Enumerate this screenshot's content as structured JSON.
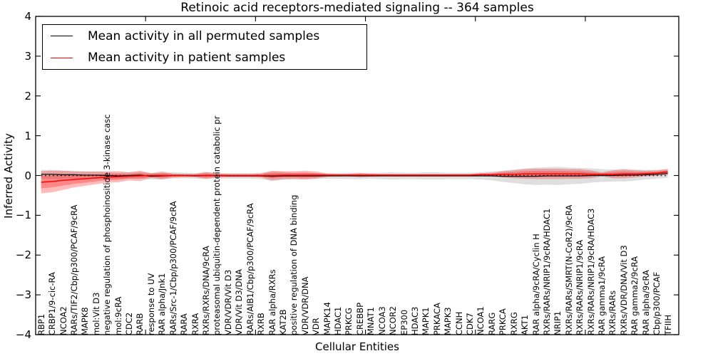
{
  "figure": {
    "title": "Retinoic acid receptors-mediated signaling -- 364 samples"
  },
  "axes": {
    "xlabel": "Cellular Entities",
    "ylabel": "Inferred Activity",
    "yticks": [
      "4",
      "3",
      "2",
      "1",
      "0",
      "−1",
      "−2",
      "−3",
      "−4"
    ],
    "ylim": [
      -4,
      4
    ]
  },
  "legend": {
    "items": [
      {
        "label": "Mean activity in all permuted samples",
        "color": "#000000"
      },
      {
        "label": "Mean activity in patient samples",
        "color": "#ff0000"
      }
    ]
  },
  "chart_data": {
    "type": "line",
    "title": "Retinoic acid receptors-mediated signaling -- 364 samples",
    "xlabel": "Cellular Entities",
    "ylabel": "Inferred Activity",
    "ylim": [
      -4,
      4
    ],
    "x_major_ticks": [
      10,
      20,
      30,
      40,
      50
    ],
    "grid": false,
    "legend_position": "upper left",
    "zero_reference_line": "dotted black at y=0",
    "categories": [
      "RBP1",
      "CRBP1/9-cic-RA",
      "NCOA2",
      "RARs/TIF2/Cbp/p300/PCAF/9cRA",
      "MAPK8",
      "mol:Vit D3",
      "negative regulation of phosphoinositide 3-kinase casc",
      "mol:9cRA",
      "CDC2",
      "RARB",
      "response to UV",
      "RAR alpha/Jnk1",
      "RARs/Src-1/Cbp/p300/PCAF/9cRA",
      "RARA",
      "RXRA",
      "RXRs/RXRs/DNA/9cRA",
      "proteasomal ubiquitin-dependent protein catabolic pr",
      "VDR/VDR/Vit D3",
      "VDR/Vit D3/DNA",
      "RARs/AIB1/Cbp/p300/PCAF/9cRA",
      "RXRB",
      "RAR alpha/RXRs",
      "KAT2B",
      "positive regulation of DNA binding",
      "VDR/VDR/DNA",
      "VDR",
      "MAPK14",
      "HDAC1",
      "PRKCG",
      "CREBBP",
      "MNAT1",
      "NCOA3",
      "NCOR2",
      "EP300",
      "HDAC3",
      "MAPK1",
      "PRKACA",
      "MAPK3",
      "CCNH",
      "CDK7",
      "NCOA1",
      "RARG",
      "PRKCA",
      "RXRG",
      "AKT1",
      "RAR alpha/9cRA/Cyclin H",
      "RXRs/RARs/NRIP1/9cRA/HDAC1",
      "NRIP1",
      "RXRs/RARs/SMRT(N-CoR2)/9cRA",
      "RXRs/RARs/NRIP1/9cRA",
      "RXRs/RARs/NRIP1/9cRA/HDAC3",
      "RAR gamma1/9cRA",
      "RXRs/RARs",
      "RXRs/VDR/DNA/Vit D3",
      "RAR gamma2/9cRA",
      "RAR alpha/9cRA",
      "Cbp/p300/PCAF",
      "TFIIH"
    ],
    "series": [
      {
        "name": "Mean activity in all permuted samples",
        "color": "#000000",
        "line_style": "solid",
        "band_color": "rgba(128,128,128,0.25)",
        "values": [
          0.03,
          0.03,
          0.02,
          0.02,
          0.01,
          0.01,
          0.0,
          -0.01,
          0.0,
          0.01,
          -0.02,
          -0.01,
          0.0,
          0.0,
          -0.01,
          0.0,
          0.0,
          -0.01,
          -0.01,
          -0.01,
          -0.01,
          -0.02,
          -0.01,
          -0.01,
          -0.01,
          -0.01,
          -0.01,
          -0.01,
          -0.01,
          -0.01,
          -0.01,
          -0.01,
          -0.01,
          -0.01,
          -0.01,
          -0.01,
          -0.01,
          -0.01,
          -0.01,
          -0.01,
          -0.01,
          -0.01,
          -0.02,
          -0.02,
          -0.02,
          -0.02,
          -0.01,
          -0.01,
          -0.01,
          -0.01,
          0.0,
          0.0,
          0.0,
          0.01,
          0.01,
          0.02,
          0.03,
          0.05
        ],
        "band_halfwidth": [
          0.11,
          0.11,
          0.1,
          0.1,
          0.09,
          0.09,
          0.09,
          0.08,
          0.08,
          0.08,
          0.08,
          0.08,
          0.08,
          0.07,
          0.07,
          0.08,
          0.07,
          0.07,
          0.07,
          0.07,
          0.08,
          0.12,
          0.1,
          0.08,
          0.08,
          0.07,
          0.07,
          0.07,
          0.08,
          0.08,
          0.07,
          0.08,
          0.09,
          0.08,
          0.08,
          0.09,
          0.09,
          0.08,
          0.08,
          0.08,
          0.09,
          0.11,
          0.14,
          0.17,
          0.2,
          0.22,
          0.22,
          0.23,
          0.21,
          0.2,
          0.18,
          0.16,
          0.15,
          0.16,
          0.14,
          0.12,
          0.11,
          0.11
        ]
      },
      {
        "name": "Mean activity in patient samples",
        "color": "#ff0000",
        "line_style": "solid",
        "band_color": "rgba(255,0,0,0.27)",
        "values": [
          -0.17,
          -0.15,
          -0.12,
          -0.1,
          -0.08,
          -0.06,
          -0.04,
          -0.03,
          -0.02,
          -0.01,
          0.0,
          0.0,
          0.0,
          0.0,
          0.0,
          0.0,
          0.0,
          0.0,
          0.0,
          0.0,
          0.0,
          0.0,
          0.01,
          0.01,
          0.01,
          0.01,
          0.01,
          0.01,
          0.01,
          0.01,
          0.01,
          0.01,
          0.01,
          0.01,
          0.01,
          0.01,
          0.01,
          0.01,
          0.01,
          0.01,
          0.02,
          0.02,
          0.03,
          0.03,
          0.04,
          0.04,
          0.04,
          0.04,
          0.04,
          0.04,
          0.03,
          0.03,
          0.03,
          0.04,
          0.04,
          0.05,
          0.06,
          0.09
        ],
        "band_halfwidth": [
          0.28,
          0.27,
          0.24,
          0.2,
          0.18,
          0.16,
          0.14,
          0.14,
          0.1,
          0.13,
          0.06,
          0.1,
          0.05,
          0.04,
          0.04,
          0.09,
          0.05,
          0.04,
          0.04,
          0.04,
          0.05,
          0.12,
          0.1,
          0.1,
          0.11,
          0.09,
          0.04,
          0.03,
          0.03,
          0.05,
          0.04,
          0.03,
          0.03,
          0.03,
          0.03,
          0.03,
          0.03,
          0.03,
          0.03,
          0.03,
          0.04,
          0.05,
          0.08,
          0.1,
          0.12,
          0.13,
          0.13,
          0.13,
          0.12,
          0.12,
          0.1,
          0.05,
          0.1,
          0.11,
          0.09,
          0.07,
          0.07,
          0.07
        ]
      }
    ]
  }
}
